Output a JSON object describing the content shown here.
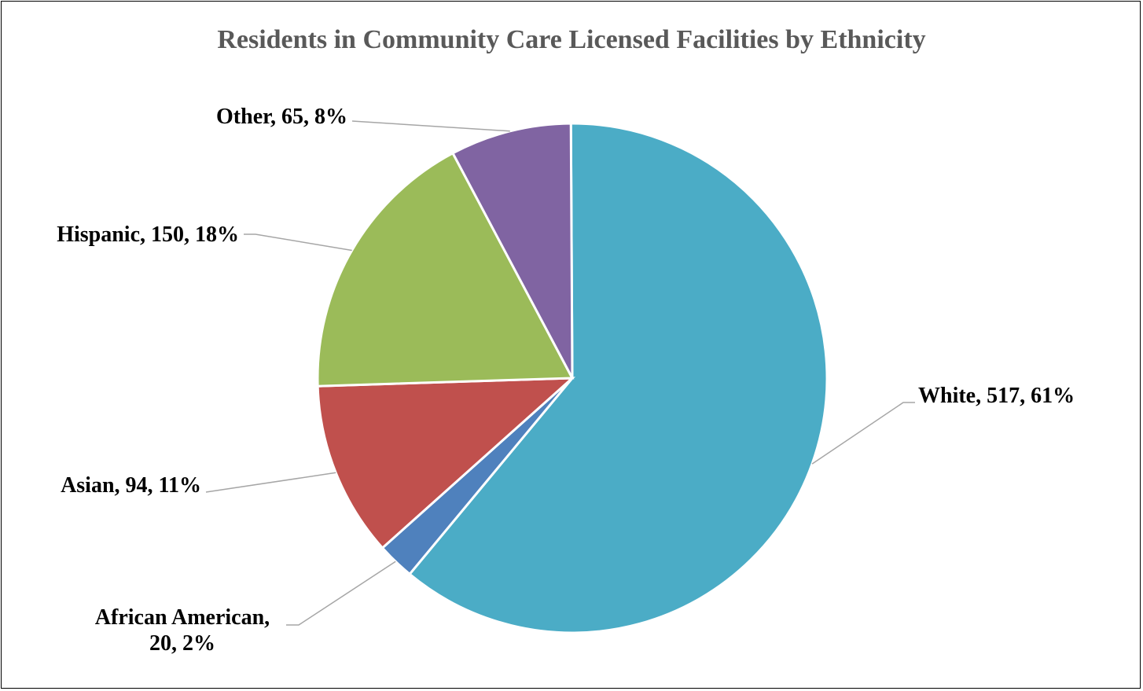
{
  "chart_data": {
    "type": "pie",
    "title": "Residents in Community Care Licensed Facilities by Ethnicity",
    "categories": [
      "White",
      "African American",
      "Asian",
      "Hispanic",
      "Other"
    ],
    "values": [
      517,
      20,
      94,
      150,
      65
    ],
    "percents": [
      "61%",
      "2%",
      "11%",
      "18%",
      "8%"
    ],
    "colors": [
      "#4BACC6",
      "#4F81BD",
      "#C0504D",
      "#9BBB59",
      "#8064A2"
    ],
    "labels": [
      {
        "lines": [
          "White, 517, 61%"
        ]
      },
      {
        "lines": [
          "African American,",
          "20, 2%"
        ]
      },
      {
        "lines": [
          "Asian, 94, 11%"
        ]
      },
      {
        "lines": [
          "Hispanic, 150, 18%"
        ]
      },
      {
        "lines": [
          "Other, 65, 8%"
        ]
      }
    ],
    "legend": "none",
    "grid": false
  }
}
